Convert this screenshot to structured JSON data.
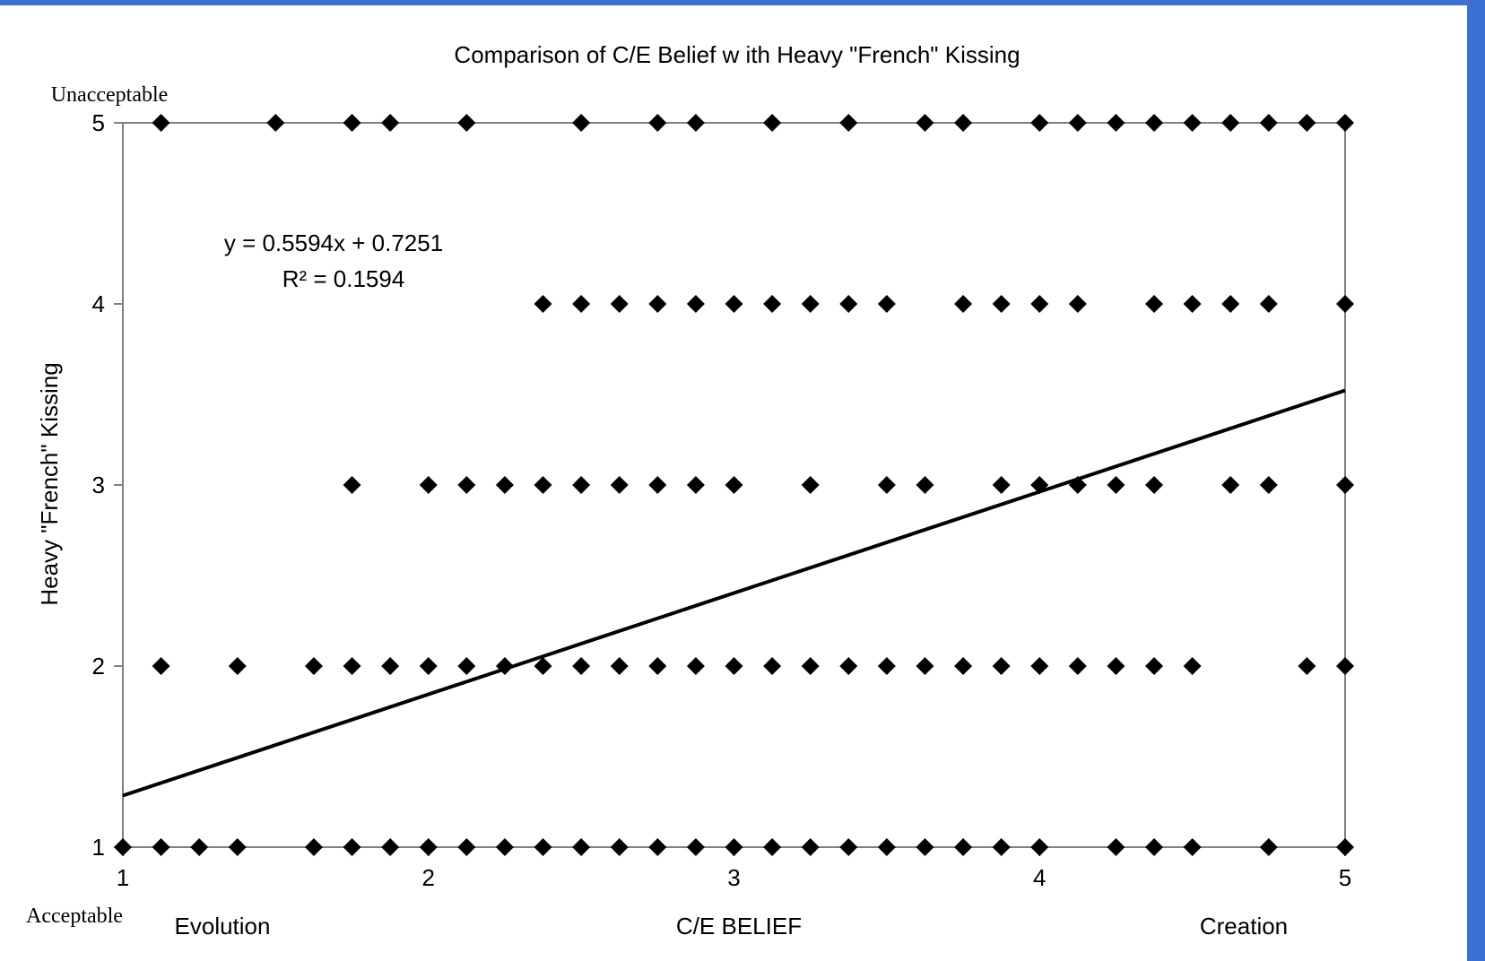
{
  "colors": {
    "frame_accent": "#3b6fd0",
    "marker": "#000000",
    "axis": "#808080",
    "trendline": "#000000"
  },
  "chart_data": {
    "type": "scatter",
    "title": "Comparison of C/E Belief w ith Heavy \"French\" Kissing",
    "xlabel": "C/E BELIEF",
    "ylabel": "Heavy \"French\" Kissing",
    "xlim": [
      1,
      5
    ],
    "ylim": [
      1,
      5
    ],
    "x_ticks": [
      1,
      2,
      3,
      4,
      5
    ],
    "y_ticks": [
      1,
      2,
      3,
      4,
      5
    ],
    "x_tick_labels": [
      "1",
      "2",
      "3",
      "4",
      "5"
    ],
    "y_tick_labels": [
      "1",
      "2",
      "3",
      "4",
      "5"
    ],
    "x_end_labels": {
      "left": "Evolution",
      "right": "Creation"
    },
    "y_end_labels": {
      "top": "Unacceptable",
      "bottom": "Acceptable"
    },
    "grid": false,
    "marker": "diamond",
    "trendline": {
      "slope": 0.5594,
      "intercept": 0.7251,
      "equation_label": "y = 0.5594x + 0.7251",
      "r2_label": "R² = 0.1594"
    },
    "points": [
      [
        1.125,
        5
      ],
      [
        1.5,
        5
      ],
      [
        1.75,
        5
      ],
      [
        1.875,
        5
      ],
      [
        2.125,
        5
      ],
      [
        2.5,
        5
      ],
      [
        2.75,
        5
      ],
      [
        2.875,
        5
      ],
      [
        3.125,
        5
      ],
      [
        3.375,
        5
      ],
      [
        3.625,
        5
      ],
      [
        3.75,
        5
      ],
      [
        4.0,
        5
      ],
      [
        4.125,
        5
      ],
      [
        4.25,
        5
      ],
      [
        4.375,
        5
      ],
      [
        4.5,
        5
      ],
      [
        4.625,
        5
      ],
      [
        4.75,
        5
      ],
      [
        4.875,
        5
      ],
      [
        5.0,
        5
      ],
      [
        2.375,
        4
      ],
      [
        2.5,
        4
      ],
      [
        2.625,
        4
      ],
      [
        2.75,
        4
      ],
      [
        2.875,
        4
      ],
      [
        3.0,
        4
      ],
      [
        3.125,
        4
      ],
      [
        3.25,
        4
      ],
      [
        3.375,
        4
      ],
      [
        3.5,
        4
      ],
      [
        3.75,
        4
      ],
      [
        3.875,
        4
      ],
      [
        4.0,
        4
      ],
      [
        4.125,
        4
      ],
      [
        4.375,
        4
      ],
      [
        4.5,
        4
      ],
      [
        4.625,
        4
      ],
      [
        4.75,
        4
      ],
      [
        5.0,
        4
      ],
      [
        1.75,
        3
      ],
      [
        2.0,
        3
      ],
      [
        2.125,
        3
      ],
      [
        2.25,
        3
      ],
      [
        2.375,
        3
      ],
      [
        2.5,
        3
      ],
      [
        2.625,
        3
      ],
      [
        2.75,
        3
      ],
      [
        2.875,
        3
      ],
      [
        3.0,
        3
      ],
      [
        3.25,
        3
      ],
      [
        3.5,
        3
      ],
      [
        3.625,
        3
      ],
      [
        3.875,
        3
      ],
      [
        4.0,
        3
      ],
      [
        4.125,
        3
      ],
      [
        4.25,
        3
      ],
      [
        4.375,
        3
      ],
      [
        4.625,
        3
      ],
      [
        4.75,
        3
      ],
      [
        5.0,
        3
      ],
      [
        1.125,
        2
      ],
      [
        1.375,
        2
      ],
      [
        1.625,
        2
      ],
      [
        1.75,
        2
      ],
      [
        1.875,
        2
      ],
      [
        2.0,
        2
      ],
      [
        2.125,
        2
      ],
      [
        2.25,
        2
      ],
      [
        2.375,
        2
      ],
      [
        2.5,
        2
      ],
      [
        2.625,
        2
      ],
      [
        2.75,
        2
      ],
      [
        2.875,
        2
      ],
      [
        3.0,
        2
      ],
      [
        3.125,
        2
      ],
      [
        3.25,
        2
      ],
      [
        3.375,
        2
      ],
      [
        3.5,
        2
      ],
      [
        3.625,
        2
      ],
      [
        3.75,
        2
      ],
      [
        3.875,
        2
      ],
      [
        4.0,
        2
      ],
      [
        4.125,
        2
      ],
      [
        4.25,
        2
      ],
      [
        4.375,
        2
      ],
      [
        4.5,
        2
      ],
      [
        4.875,
        2
      ],
      [
        5.0,
        2
      ],
      [
        1.0,
        1
      ],
      [
        1.125,
        1
      ],
      [
        1.25,
        1
      ],
      [
        1.375,
        1
      ],
      [
        1.625,
        1
      ],
      [
        1.75,
        1
      ],
      [
        1.875,
        1
      ],
      [
        2.0,
        1
      ],
      [
        2.125,
        1
      ],
      [
        2.25,
        1
      ],
      [
        2.375,
        1
      ],
      [
        2.5,
        1
      ],
      [
        2.625,
        1
      ],
      [
        2.75,
        1
      ],
      [
        2.875,
        1
      ],
      [
        3.0,
        1
      ],
      [
        3.125,
        1
      ],
      [
        3.25,
        1
      ],
      [
        3.375,
        1
      ],
      [
        3.5,
        1
      ],
      [
        3.625,
        1
      ],
      [
        3.75,
        1
      ],
      [
        3.875,
        1
      ],
      [
        4.0,
        1
      ],
      [
        4.25,
        1
      ],
      [
        4.375,
        1
      ],
      [
        4.5,
        1
      ],
      [
        4.75,
        1
      ],
      [
        5.0,
        1
      ]
    ]
  }
}
